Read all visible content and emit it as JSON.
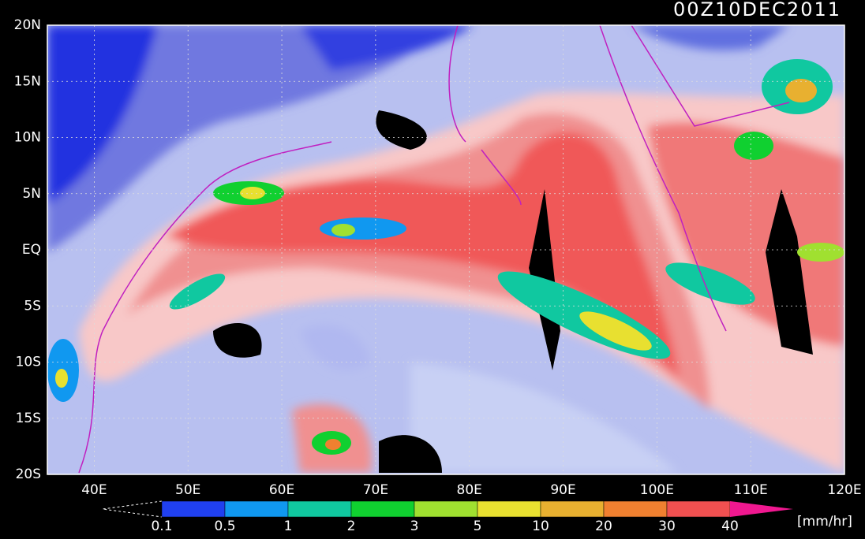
{
  "header": {
    "title": "00Z10DEC2011"
  },
  "axes": {
    "lat_labels": [
      "20N",
      "15N",
      "10N",
      "5N",
      "EQ",
      "5S",
      "10S",
      "15S",
      "20S"
    ],
    "lon_labels": [
      "40E",
      "50E",
      "60E",
      "70E",
      "80E",
      "90E",
      "100E",
      "110E",
      "120E"
    ]
  },
  "colorbar": {
    "labels": [
      0.1,
      0.5,
      1,
      2,
      3,
      5,
      10,
      20,
      30,
      40
    ],
    "colors": [
      "#2040f0",
      "#1098f0",
      "#10c8a0",
      "#10d030",
      "#a0e030",
      "#e8e030",
      "#e8b030",
      "#f08030",
      "#f05050"
    ],
    "over_color": "#f01890",
    "unit": "[mm/hr]"
  }
}
